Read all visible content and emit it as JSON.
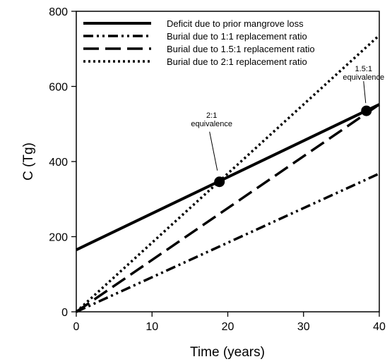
{
  "chart_data": {
    "type": "line",
    "xlabel": "Time (years)",
    "ylabel": "C (Tg)",
    "xlim": [
      0,
      40
    ],
    "ylim": [
      0,
      800
    ],
    "xticks": [
      0,
      10,
      20,
      30,
      40
    ],
    "yticks": [
      0,
      200,
      400,
      600,
      800
    ],
    "grid": false,
    "legend_position": "top-left",
    "series": [
      {
        "name": "Deficit due to prior mangrove loss",
        "style": "solid",
        "x": [
          0,
          40
        ],
        "y": [
          165,
          552
        ]
      },
      {
        "name": "Burial due to 1:1 replacement ratio",
        "style": "dash-dot-dot",
        "x": [
          0,
          40
        ],
        "y": [
          0,
          368
        ]
      },
      {
        "name": "Burial due to 1.5:1 replacement ratio",
        "style": "dashed",
        "x": [
          0,
          40
        ],
        "y": [
          0,
          552
        ]
      },
      {
        "name": "Burial due to 2:1 replacement ratio",
        "style": "dotted",
        "x": [
          0,
          40
        ],
        "y": [
          0,
          736
        ]
      }
    ],
    "annotations": [
      {
        "lines": [
          "2:1",
          "equivalence"
        ],
        "x": 18.9,
        "y": 346
      },
      {
        "lines": [
          "1.5:1",
          "equivalence"
        ],
        "x": 38.3,
        "y": 535
      }
    ]
  }
}
